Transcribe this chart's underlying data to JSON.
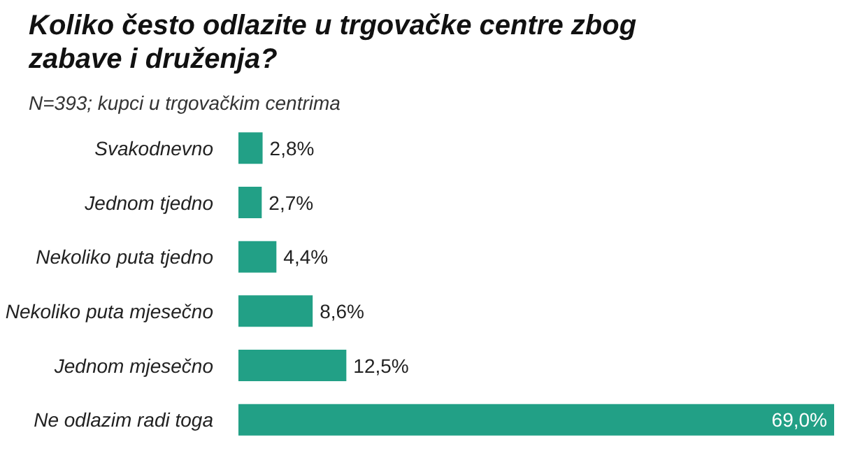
{
  "chart_data": {
    "type": "bar",
    "orientation": "horizontal",
    "title": "Koliko često odlazite u trgovačke centre zbog zabave i druženja?",
    "subtitle": "N=393; kupci u trgovačkim centrima",
    "categories": [
      "Svakodnevno",
      "Jednom tjedno",
      "Nekoliko puta tjedno",
      "Nekoliko puta mjesečno",
      "Jednom mjesečno",
      "Ne odlazim radi toga"
    ],
    "values": [
      2.8,
      2.7,
      4.4,
      8.6,
      12.5,
      69.0
    ],
    "value_labels": [
      "2,8%",
      "2,7%",
      "4,4%",
      "8,6%",
      "12,5%",
      "69,0%"
    ],
    "color": "#22a086",
    "grid": false
  }
}
